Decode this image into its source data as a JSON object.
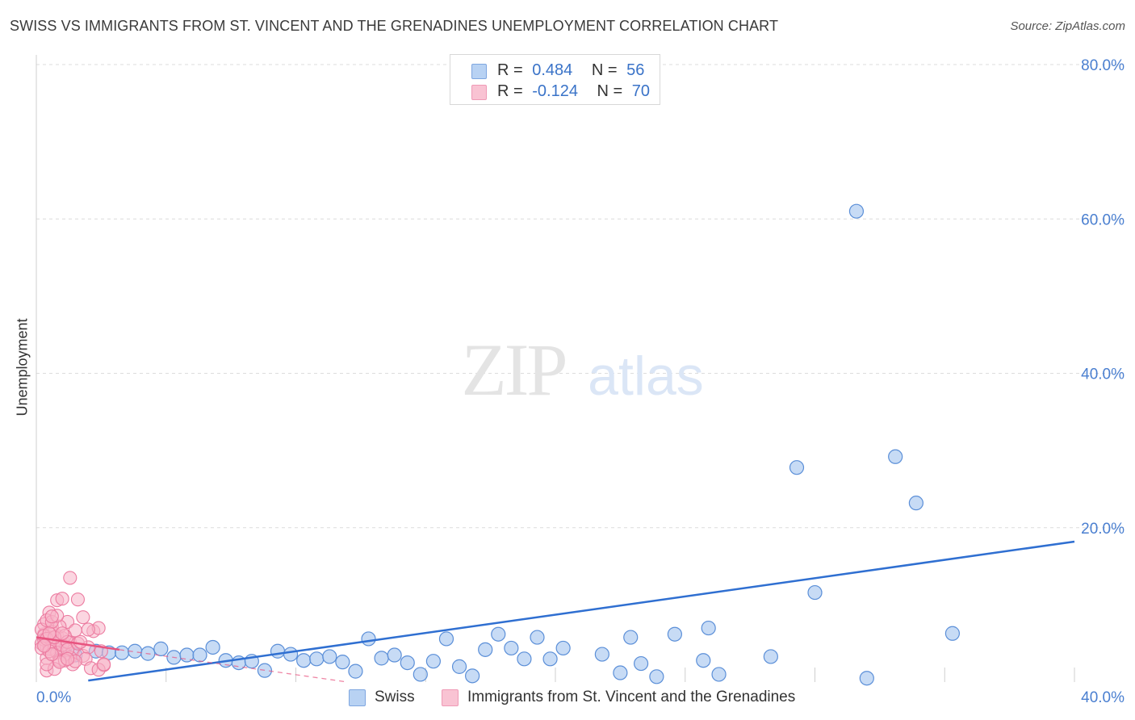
{
  "header": {
    "title": "SWISS VS IMMIGRANTS FROM ST. VINCENT AND THE GRENADINES UNEMPLOYMENT CORRELATION CHART",
    "source": "Source: ZipAtlas.com"
  },
  "watermark": {
    "zip": "ZIP",
    "atlas": "atlas"
  },
  "stats": [
    {
      "r_label": "R =",
      "r_value": "0.484",
      "n_label": "N =",
      "n_value": "56"
    },
    {
      "r_label": "R =",
      "r_value": "-0.124",
      "n_label": "N =",
      "n_value": "70"
    }
  ],
  "colors": {
    "swiss_fill": "#a9c8f0",
    "swiss_stroke": "#5b8fd8",
    "swiss_line": "#2f6fd1",
    "immig_fill": "#f7b5c9",
    "immig_stroke": "#ec7ba0",
    "immig_line": "#e8537f",
    "grid": "#dcdcdc",
    "tick_text": "#4a7fd0"
  },
  "chart_data": {
    "type": "scatter",
    "title": "SWISS VS IMMIGRANTS FROM ST. VINCENT AND THE GRENADINES UNEMPLOYMENT CORRELATION CHART",
    "xlabel": "",
    "ylabel": "Unemployment",
    "xlim": [
      0,
      40
    ],
    "ylim": [
      0,
      80
    ],
    "x_tick_labels": [
      "0.0%",
      "40.0%"
    ],
    "y_ticks": [
      20,
      40,
      60,
      80
    ],
    "y_tick_labels": [
      "20.0%",
      "40.0%",
      "60.0%",
      "80.0%"
    ],
    "grid": true,
    "legend_position": "bottom",
    "series": [
      {
        "name": "Swiss",
        "r": 0.484,
        "n": 56,
        "trend": {
          "x": [
            2.0,
            40.0
          ],
          "y": [
            0.2,
            18.2
          ],
          "style": "solid"
        },
        "points": [
          [
            1.0,
            4.0
          ],
          [
            1.5,
            3.5
          ],
          [
            2.3,
            4.0
          ],
          [
            2.8,
            3.8
          ],
          [
            3.3,
            3.8
          ],
          [
            3.8,
            4.0
          ],
          [
            4.3,
            3.7
          ],
          [
            4.8,
            4.3
          ],
          [
            5.3,
            3.2
          ],
          [
            5.8,
            3.5
          ],
          [
            6.3,
            3.5
          ],
          [
            6.8,
            4.5
          ],
          [
            7.3,
            2.8
          ],
          [
            7.8,
            2.5
          ],
          [
            8.3,
            2.7
          ],
          [
            8.8,
            1.5
          ],
          [
            9.3,
            4.0
          ],
          [
            9.8,
            3.6
          ],
          [
            10.3,
            2.8
          ],
          [
            10.8,
            3.0
          ],
          [
            11.3,
            3.3
          ],
          [
            11.8,
            2.6
          ],
          [
            12.3,
            1.4
          ],
          [
            12.8,
            5.6
          ],
          [
            13.3,
            3.1
          ],
          [
            13.8,
            3.5
          ],
          [
            14.3,
            2.5
          ],
          [
            14.8,
            1.0
          ],
          [
            15.3,
            2.7
          ],
          [
            15.8,
            5.6
          ],
          [
            16.3,
            2.0
          ],
          [
            16.8,
            0.8
          ],
          [
            17.3,
            4.2
          ],
          [
            17.8,
            6.2
          ],
          [
            18.3,
            4.4
          ],
          [
            18.8,
            3.0
          ],
          [
            19.3,
            5.8
          ],
          [
            19.8,
            3.0
          ],
          [
            20.3,
            4.4
          ],
          [
            21.8,
            3.6
          ],
          [
            22.5,
            1.2
          ],
          [
            22.9,
            5.8
          ],
          [
            23.3,
            2.4
          ],
          [
            23.9,
            0.7
          ],
          [
            24.6,
            6.2
          ],
          [
            25.7,
            2.8
          ],
          [
            25.9,
            7.0
          ],
          [
            26.3,
            1.0
          ],
          [
            31.6,
            61.0
          ],
          [
            29.3,
            27.8
          ],
          [
            33.1,
            29.2
          ],
          [
            33.9,
            23.2
          ],
          [
            30.0,
            11.6
          ],
          [
            35.3,
            6.3
          ],
          [
            28.3,
            3.3
          ],
          [
            32.0,
            0.5
          ]
        ]
      },
      {
        "name": "Immigrants from St. Vincent and the Grenadines",
        "r": -0.124,
        "n": 70,
        "trend": {
          "x": [
            0.0,
            3.2
          ],
          "y": [
            5.8,
            4.2
          ],
          "style": "solid"
        },
        "trend_extension": {
          "x": [
            3.2,
            12.0
          ],
          "y": [
            4.2,
            0.0
          ],
          "style": "dashed"
        },
        "points": [
          [
            0.2,
            5.0
          ],
          [
            0.3,
            6.2
          ],
          [
            0.4,
            4.6
          ],
          [
            0.5,
            5.8
          ],
          [
            0.6,
            7.1
          ],
          [
            0.7,
            4.1
          ],
          [
            0.3,
            7.5
          ],
          [
            0.4,
            3.1
          ],
          [
            0.5,
            9.0
          ],
          [
            0.6,
            5.3
          ],
          [
            0.8,
            6.0
          ],
          [
            0.9,
            4.5
          ],
          [
            1.0,
            5.7
          ],
          [
            1.1,
            3.6
          ],
          [
            1.2,
            7.8
          ],
          [
            1.3,
            5.1
          ],
          [
            1.4,
            4.0
          ],
          [
            1.5,
            6.7
          ],
          [
            0.2,
            6.8
          ],
          [
            0.3,
            5.5
          ],
          [
            0.4,
            8.0
          ],
          [
            0.5,
            4.3
          ],
          [
            0.6,
            6.5
          ],
          [
            0.7,
            5.0
          ],
          [
            0.8,
            3.8
          ],
          [
            0.9,
            7.2
          ],
          [
            1.0,
            4.8
          ],
          [
            1.1,
            6.0
          ],
          [
            1.2,
            5.2
          ],
          [
            1.3,
            3.2
          ],
          [
            0.2,
            4.4
          ],
          [
            0.3,
            6.0
          ],
          [
            0.4,
            5.6
          ],
          [
            0.5,
            4.0
          ],
          [
            0.6,
            7.8
          ],
          [
            0.7,
            5.8
          ],
          [
            0.8,
            8.6
          ],
          [
            0.9,
            2.8
          ],
          [
            1.0,
            6.3
          ],
          [
            1.2,
            4.2
          ],
          [
            1.4,
            2.3
          ],
          [
            1.6,
            5.0
          ],
          [
            1.8,
            3.4
          ],
          [
            2.0,
            4.5
          ],
          [
            2.2,
            6.6
          ],
          [
            2.4,
            7.0
          ],
          [
            2.6,
            2.2
          ],
          [
            1.3,
            13.5
          ],
          [
            1.6,
            10.7
          ],
          [
            0.8,
            10.6
          ],
          [
            1.0,
            10.8
          ],
          [
            0.6,
            8.5
          ],
          [
            1.9,
            3.0
          ],
          [
            2.5,
            4.0
          ],
          [
            2.1,
            1.8
          ],
          [
            2.4,
            1.6
          ],
          [
            2.6,
            2.3
          ],
          [
            0.4,
            1.5
          ],
          [
            0.7,
            1.7
          ],
          [
            1.1,
            2.8
          ],
          [
            1.5,
            2.7
          ],
          [
            1.7,
            5.2
          ],
          [
            1.8,
            8.4
          ],
          [
            2.0,
            6.8
          ],
          [
            0.9,
            2.6
          ],
          [
            1.2,
            3.0
          ],
          [
            0.4,
            2.3
          ],
          [
            0.6,
            3.6
          ],
          [
            0.3,
            4.7
          ],
          [
            0.5,
            6.3
          ]
        ]
      }
    ]
  },
  "legend": {
    "items": [
      {
        "label": "Swiss"
      },
      {
        "label": "Immigrants from St. Vincent and the Grenadines"
      }
    ]
  }
}
